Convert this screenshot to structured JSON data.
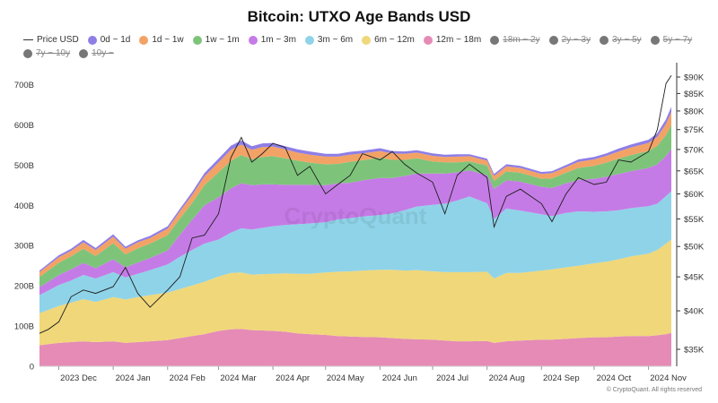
{
  "chart_data": {
    "type": "area",
    "title": "Bitcoin: UTXO Age Bands USD",
    "stacked": true,
    "x": [
      "2023-11-20",
      "2023-11-25",
      "2023-12-01",
      "2023-12-08",
      "2023-12-15",
      "2023-12-22",
      "2024-01-01",
      "2024-01-08",
      "2024-01-15",
      "2024-01-22",
      "2024-02-01",
      "2024-02-08",
      "2024-02-15",
      "2024-02-22",
      "2024-03-01",
      "2024-03-08",
      "2024-03-14",
      "2024-03-20",
      "2024-03-26",
      "2024-04-01",
      "2024-04-08",
      "2024-04-15",
      "2024-04-22",
      "2024-05-01",
      "2024-05-08",
      "2024-05-15",
      "2024-05-22",
      "2024-06-01",
      "2024-06-08",
      "2024-06-15",
      "2024-06-22",
      "2024-07-01",
      "2024-07-08",
      "2024-07-15",
      "2024-07-22",
      "2024-08-01",
      "2024-08-05",
      "2024-08-12",
      "2024-08-20",
      "2024-09-01",
      "2024-09-07",
      "2024-09-15",
      "2024-09-22",
      "2024-10-01",
      "2024-10-08",
      "2024-10-15",
      "2024-10-22",
      "2024-11-01",
      "2024-11-06",
      "2024-11-11",
      "2024-11-14"
    ],
    "series": [
      {
        "name": "12m ~ 18m",
        "color": "#e58bb6",
        "values": [
          52,
          55,
          58,
          60,
          62,
          60,
          62,
          58,
          60,
          62,
          65,
          70,
          75,
          80,
          88,
          92,
          93,
          90,
          89,
          88,
          86,
          82,
          80,
          78,
          75,
          74,
          73,
          72,
          70,
          68,
          67,
          66,
          64,
          62,
          62,
          63,
          58,
          62,
          64,
          66,
          66,
          68,
          70,
          72,
          72,
          74,
          75,
          75,
          77,
          80,
          83
        ]
      },
      {
        "name": "6m ~ 12m",
        "color": "#f0d77a",
        "values": [
          80,
          85,
          92,
          98,
          105,
          100,
          110,
          108,
          112,
          115,
          118,
          122,
          126,
          130,
          135,
          140,
          140,
          138,
          140,
          142,
          145,
          148,
          150,
          155,
          160,
          162,
          165,
          168,
          170,
          170,
          172,
          170,
          170,
          172,
          172,
          172,
          160,
          170,
          168,
          172,
          175,
          178,
          180,
          184,
          188,
          192,
          198,
          205,
          212,
          225,
          232
        ]
      },
      {
        "name": "3m ~ 6m",
        "color": "#8fd3e8",
        "values": [
          45,
          48,
          52,
          55,
          60,
          58,
          62,
          55,
          58,
          62,
          70,
          80,
          88,
          95,
          92,
          100,
          110,
          112,
          115,
          118,
          120,
          123,
          125,
          125,
          130,
          132,
          134,
          136,
          140,
          150,
          158,
          165,
          170,
          178,
          188,
          170,
          148,
          160,
          155,
          140,
          132,
          135,
          135,
          128,
          125,
          122,
          120,
          118,
          115,
          118,
          120
        ]
      },
      {
        "name": "1m ~ 3m",
        "color": "#c57be6",
        "values": [
          20,
          22,
          25,
          28,
          30,
          26,
          32,
          25,
          28,
          30,
          35,
          55,
          75,
          95,
          105,
          110,
          112,
          110,
          108,
          104,
          100,
          98,
          96,
          92,
          90,
          88,
          90,
          92,
          88,
          85,
          82,
          78,
          75,
          70,
          65,
          70,
          75,
          70,
          72,
          68,
          70,
          74,
          78,
          82,
          86,
          90,
          92,
          95,
          98,
          100,
          105
        ]
      },
      {
        "name": "1w ~ 1m",
        "color": "#7dc47a",
        "values": [
          25,
          28,
          30,
          32,
          35,
          30,
          40,
          32,
          35,
          36,
          38,
          40,
          42,
          50,
          62,
          68,
          70,
          64,
          68,
          70,
          66,
          60,
          55,
          52,
          48,
          52,
          50,
          50,
          45,
          40,
          38,
          30,
          28,
          25,
          22,
          24,
          20,
          22,
          22,
          20,
          24,
          26,
          30,
          32,
          35,
          38,
          40,
          42,
          46,
          52,
          60
        ]
      },
      {
        "name": "1d ~ 1w",
        "color": "#f3a266",
        "values": [
          12,
          13,
          14,
          14,
          16,
          15,
          16,
          14,
          15,
          14,
          16,
          18,
          20,
          22,
          25,
          28,
          26,
          24,
          25,
          24,
          22,
          20,
          20,
          19,
          18,
          18,
          17,
          17,
          16,
          15,
          14,
          14,
          13,
          14,
          13,
          12,
          12,
          13,
          12,
          12,
          13,
          14,
          15,
          16,
          17,
          18,
          19,
          20,
          22,
          28,
          32
        ]
      },
      {
        "name": "0d ~ 1d",
        "color": "#8e7ee6",
        "values": [
          4,
          4,
          5,
          5,
          6,
          5,
          6,
          5,
          5,
          5,
          6,
          6,
          7,
          8,
          9,
          10,
          10,
          9,
          9,
          9,
          8,
          8,
          8,
          7,
          7,
          7,
          7,
          7,
          6,
          6,
          6,
          6,
          6,
          6,
          5,
          5,
          5,
          5,
          5,
          5,
          5,
          5,
          6,
          6,
          6,
          7,
          7,
          8,
          9,
          11,
          13
        ]
      }
    ],
    "price": {
      "name": "Price USD",
      "color": "#1f1f1f",
      "values": [
        37000,
        37500,
        38500,
        42000,
        43000,
        42500,
        43500,
        46500,
        42500,
        40500,
        43000,
        45000,
        51500,
        52000,
        56000,
        68000,
        73000,
        67000,
        69000,
        71500,
        70500,
        64000,
        66000,
        60000,
        62000,
        64000,
        69000,
        67500,
        69500,
        66500,
        64500,
        62500,
        56000,
        64000,
        66500,
        63500,
        53500,
        59500,
        61000,
        58000,
        54500,
        60000,
        63500,
        62000,
        62500,
        67500,
        67000,
        69500,
        75000,
        88000,
        90500
      ]
    },
    "left_axis": {
      "min": 0,
      "max": 750,
      "ticks": [
        0,
        100,
        200,
        300,
        400,
        500,
        600,
        700
      ],
      "tick_labels": [
        "0",
        "100B",
        "200B",
        "300B",
        "400B",
        "500B",
        "600B",
        "700B"
      ]
    },
    "right_axis": {
      "scale": "log",
      "min": 33000,
      "max": 94000,
      "ticks": [
        35000,
        40000,
        45000,
        50000,
        55000,
        60000,
        65000,
        70000,
        75000,
        80000,
        85000,
        90000
      ],
      "tick_labels": [
        "$35K",
        "$40K",
        "$45K",
        "$50K",
        "$55K",
        "$60K",
        "$65K",
        "$70K",
        "$75K",
        "$80K",
        "$85K",
        "$90K"
      ]
    },
    "x_axis": {
      "min": "2023-11-20",
      "max": "2024-11-14",
      "ticks": [
        "2023-12-01",
        "2024-01-01",
        "2024-02-01",
        "2024-03-01",
        "2024-04-01",
        "2024-05-01",
        "2024-06-01",
        "2024-07-01",
        "2024-08-01",
        "2024-09-01",
        "2024-10-01",
        "2024-11-01"
      ],
      "tick_labels": [
        "2023 Dec",
        "2024 Jan",
        "2024 Feb",
        "2024 Mar",
        "2024 Apr",
        "2024 May",
        "2024 Jun",
        "2024 Jul",
        "2024 Aug",
        "2024 Sep",
        "2024 Oct",
        "2024 Nov"
      ]
    },
    "grid": false,
    "legend_position": "top",
    "watermark": "CryptoQuant"
  },
  "legend": [
    {
      "label": "Price USD",
      "kind": "line",
      "color": "#333333",
      "enabled": true
    },
    {
      "label": "0d ~ 1d",
      "kind": "dot",
      "color": "#8e7ee6",
      "enabled": true
    },
    {
      "label": "1d ~ 1w",
      "kind": "dot",
      "color": "#f3a266",
      "enabled": true
    },
    {
      "label": "1w ~ 1m",
      "kind": "dot",
      "color": "#7dc47a",
      "enabled": true
    },
    {
      "label": "1m ~ 3m",
      "kind": "dot",
      "color": "#c57be6",
      "enabled": true
    },
    {
      "label": "3m ~ 6m",
      "kind": "dot",
      "color": "#8fd3e8",
      "enabled": true
    },
    {
      "label": "6m ~ 12m",
      "kind": "dot",
      "color": "#f0d77a",
      "enabled": true
    },
    {
      "label": "12m ~ 18m",
      "kind": "dot",
      "color": "#e58bb6",
      "enabled": true
    },
    {
      "label": "18m ~ 2y",
      "kind": "dot",
      "color": "#777777",
      "enabled": false
    },
    {
      "label": "2y ~ 3y",
      "kind": "dot",
      "color": "#777777",
      "enabled": false
    },
    {
      "label": "3y ~ 5y",
      "kind": "dot",
      "color": "#777777",
      "enabled": false
    },
    {
      "label": "5y ~ 7y",
      "kind": "dot",
      "color": "#777777",
      "enabled": false
    },
    {
      "label": "7y ~ 10y",
      "kind": "dot",
      "color": "#777777",
      "enabled": false
    },
    {
      "label": "10y ~",
      "kind": "dot",
      "color": "#777777",
      "enabled": false
    }
  ],
  "copyright": "© CryptoQuant. All rights reserved"
}
